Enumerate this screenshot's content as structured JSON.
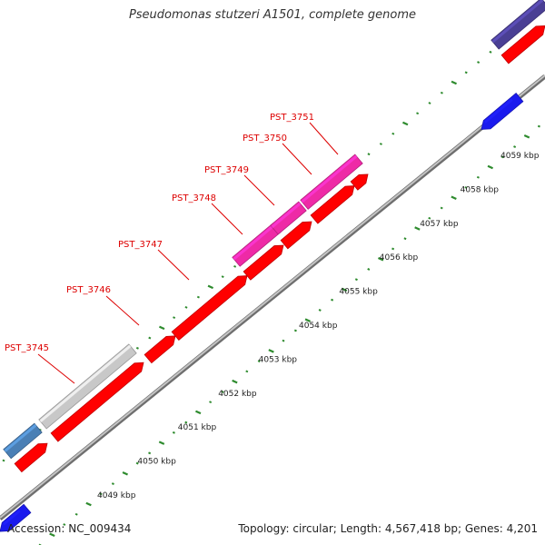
{
  "title": "Pseudomonas stutzeri A1501, complete genome",
  "footer": {
    "accession": "Accession: NC_009434",
    "summary": "Topology: circular; Length: 4,567,418 bp; Genes: 4,201"
  },
  "colors": {
    "backbone": "#9a9a9a",
    "tick": "#2e8b2e",
    "red_gene": "#ff0000",
    "magenta_gene": "#ee2aa6",
    "grey_gene": "#c8c8c8",
    "steelblue_gene": "#4a7fb5",
    "blue_gene": "#1a1aee",
    "navy_gene": "#4a3f94",
    "label": "#dd0000"
  },
  "ruler": {
    "unit": "kbp",
    "tick_labels": [
      "4049 kbp",
      "4050 kbp",
      "4051 kbp",
      "4052 kbp",
      "4053 kbp",
      "4054 kbp",
      "4055 kbp",
      "4056 kbp",
      "4057 kbp",
      "4058 kbp",
      "4059 kbp"
    ]
  },
  "gene_labels": [
    "PST_3745",
    "PST_3746",
    "PST_3747",
    "PST_3748",
    "PST_3749",
    "PST_3750",
    "PST_3751"
  ]
}
